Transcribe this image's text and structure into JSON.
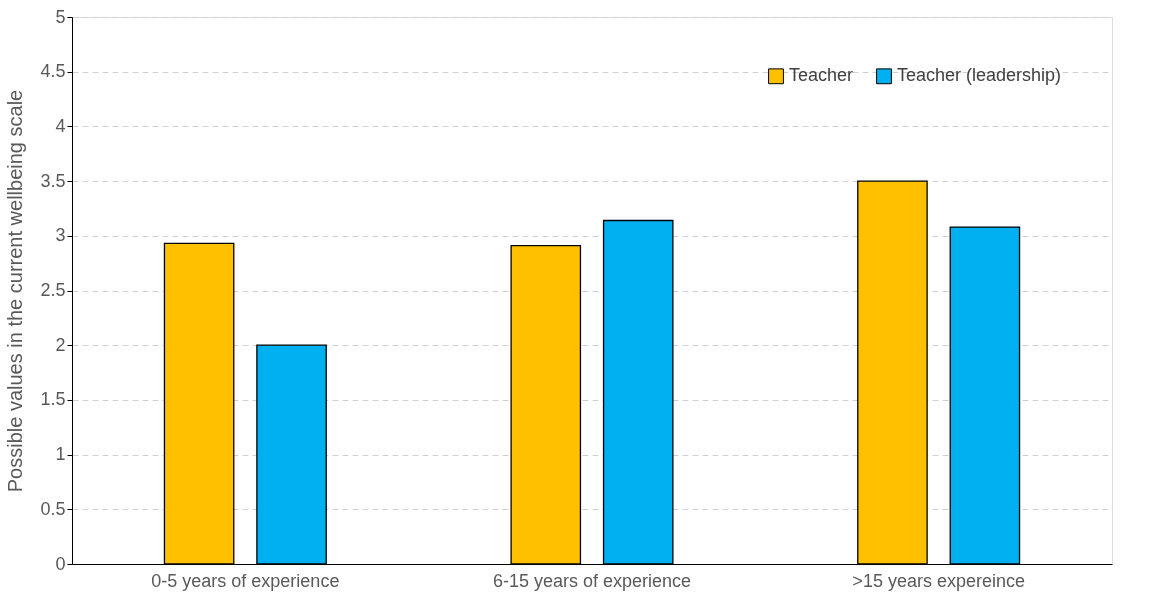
{
  "chart_data": {
    "type": "bar",
    "ylabel": "Possible values in the current wellbeing scale",
    "categories": [
      "0-5 years of experience",
      "6-15 years of experience",
      ">15 years expereince"
    ],
    "series": [
      {
        "name": "Teacher",
        "color": "#ffc000",
        "values": [
          2.93,
          2.91,
          3.5
        ]
      },
      {
        "name": "Teacher (leadership)",
        "color": "#00b0f0",
        "values": [
          2.0,
          3.14,
          3.08
        ]
      }
    ],
    "ylim": [
      0,
      5
    ],
    "yticks": [
      0,
      0.5,
      1,
      1.5,
      2,
      2.5,
      3,
      3.5,
      4,
      4.5,
      5
    ],
    "grid": "y",
    "legend": "top right"
  }
}
